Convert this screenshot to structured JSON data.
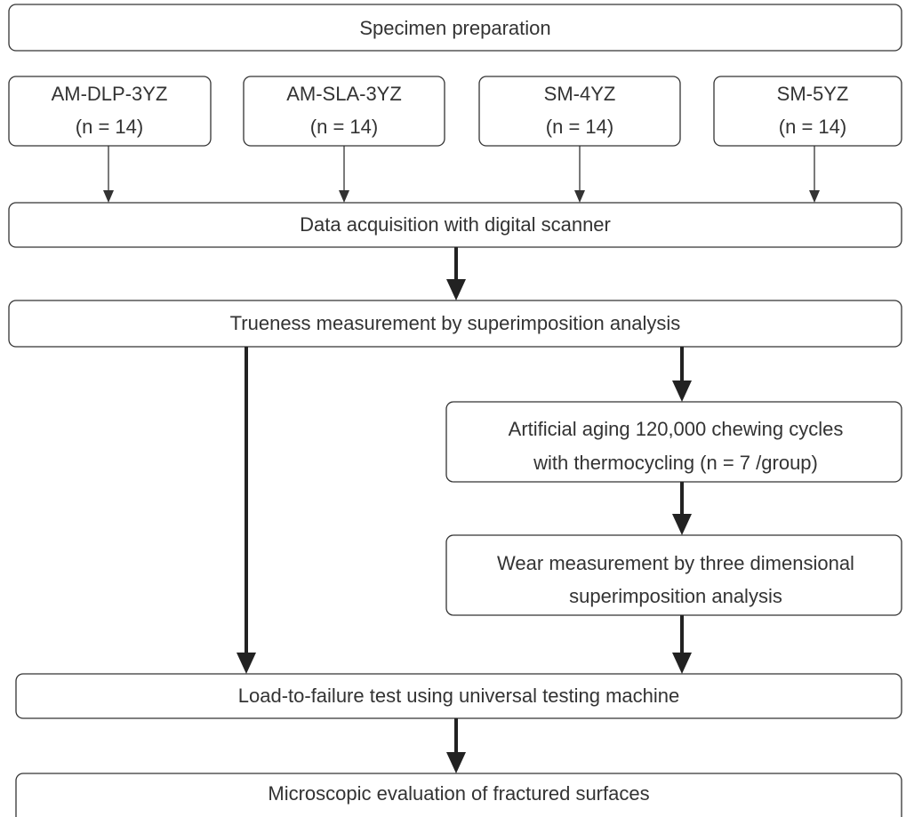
{
  "nodes": [
    {
      "lines": [
        "Specimen preparation"
      ]
    },
    {
      "lines": [
        "AM-DLP-3YZ",
        "(n = 14)"
      ]
    },
    {
      "lines": [
        "AM-SLA-3YZ",
        "(n = 14)"
      ]
    },
    {
      "lines": [
        "SM-4YZ",
        "(n = 14)"
      ]
    },
    {
      "lines": [
        "SM-5YZ",
        "(n = 14)"
      ]
    },
    {
      "lines": [
        "Data acquisition with digital scanner"
      ]
    },
    {
      "lines": [
        "Trueness measurement by superimposition analysis"
      ]
    },
    {
      "lines": [
        "Artificial aging 120,000 chewing cycles",
        "with thermocycling (n = 7 /group)"
      ]
    },
    {
      "lines": [
        "Wear measurement by three dimensional",
        "superimposition analysis"
      ]
    },
    {
      "lines": [
        "Load-to-failure test using universal testing machine"
      ]
    },
    {
      "lines": [
        "Microscopic evaluation of fractured surfaces"
      ]
    }
  ]
}
